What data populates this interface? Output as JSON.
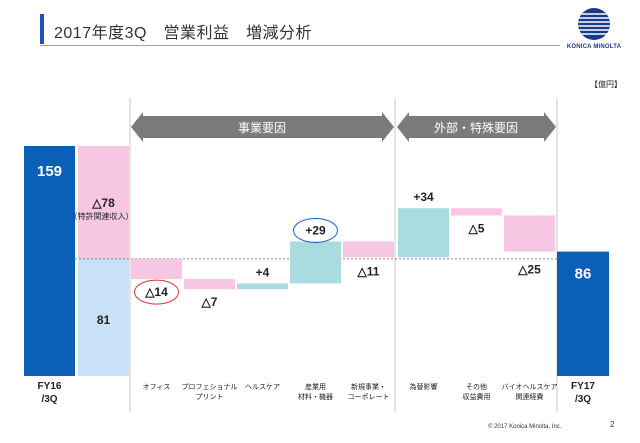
{
  "header": {
    "title": "2017年度3Q　営業利益　増減分析",
    "logo_text": "KONICA MINOLTA",
    "unit": "【億円】"
  },
  "footer": {
    "copyright": "© 2017 Konica Minolta, Inc.",
    "page_number": "2"
  },
  "groups": [
    {
      "label": "事業要因"
    },
    {
      "label": "外部・特殊要因"
    }
  ],
  "colors": {
    "total_bar": "#0b5fb7",
    "increase": "#a8dce0",
    "decrease": "#f6c6e3",
    "base_81": "#c8e0f8",
    "arrow": "#7b7b7b",
    "red_circle": "#d6322e",
    "blue_circle": "#1f5fc4"
  },
  "chart_data": {
    "type": "waterfall",
    "start": {
      "label": "FY16\n/3Q",
      "value": 159
    },
    "start_breakdown": [
      {
        "label": "81",
        "value": 81
      },
      {
        "label": "△78",
        "note": "（特許関連収入）",
        "value": -78
      }
    ],
    "steps": [
      {
        "category": "オフィス",
        "value": -14,
        "label": "△14",
        "circled": "red"
      },
      {
        "category": "プロフェショナル\nプリント",
        "value": -7,
        "label": "△7"
      },
      {
        "category": "ヘルスケア",
        "value": 4,
        "label": "+4"
      },
      {
        "category": "産業用\n材料・機器",
        "value": 29,
        "label": "+29",
        "circled": "blue"
      },
      {
        "category": "新規事業・\nコーポレート",
        "value": -11,
        "label": "△11"
      },
      {
        "category": "為替影響",
        "value": 34,
        "label": "+34"
      },
      {
        "category": "その他\n収益費用",
        "value": -5,
        "label": "△5"
      },
      {
        "category": "バイオヘルスケア\n関連経費",
        "value": -25,
        "label": "△25"
      }
    ],
    "end": {
      "label": "FY17\n/3Q",
      "value": 86
    }
  }
}
